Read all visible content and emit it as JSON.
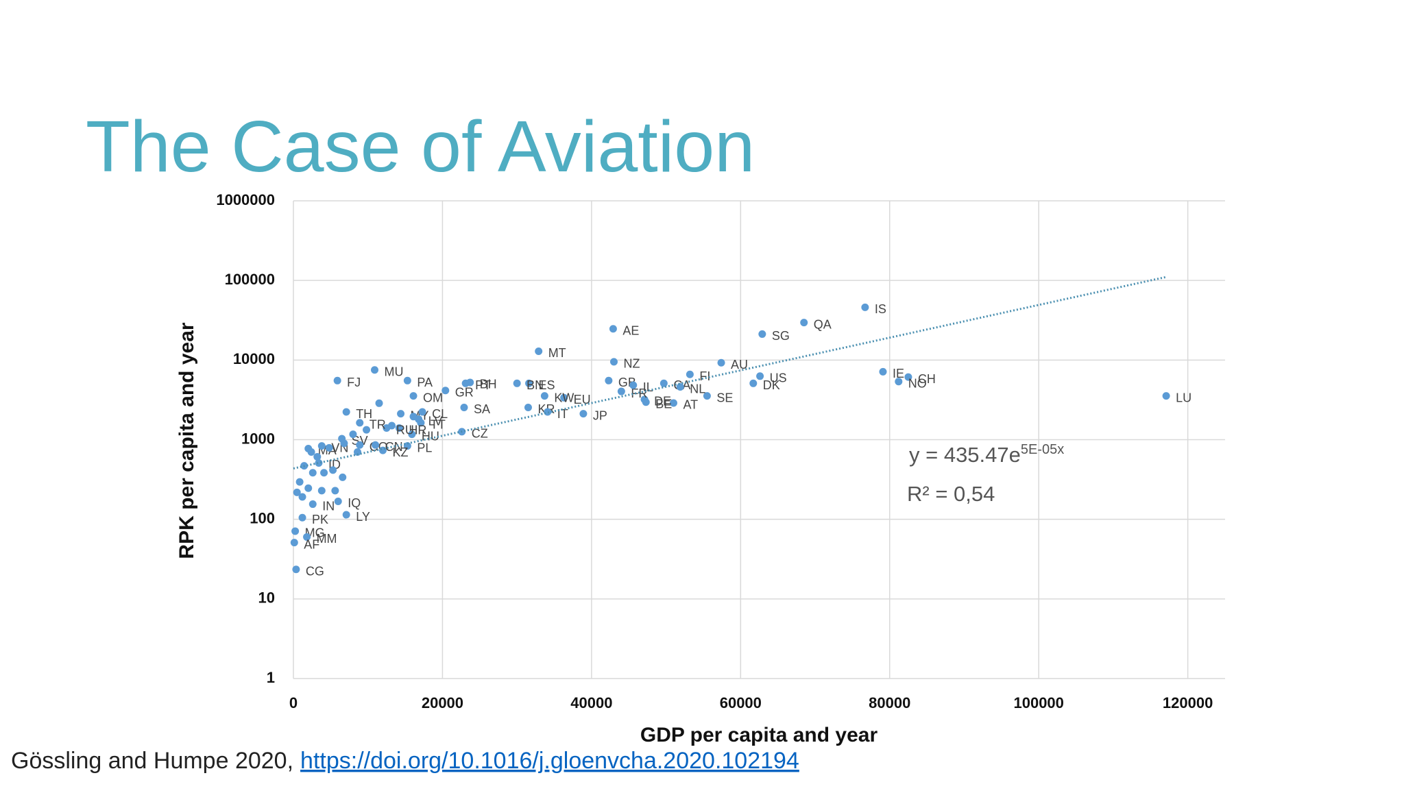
{
  "slide": {
    "title": "The Case of Aviation"
  },
  "chart_data": {
    "type": "scatter",
    "x_label": "GDP per capita and year",
    "y_label": "RPK per capita and year",
    "xlim": [
      0,
      125000
    ],
    "xticks": [
      0,
      20000,
      40000,
      60000,
      80000,
      100000,
      120000
    ],
    "ylim": [
      1,
      1000000
    ],
    "yticks": [
      1,
      10,
      100,
      1000,
      10000,
      100000,
      1000000
    ],
    "log_y": true,
    "grid": true,
    "series": [
      {
        "color": "#5b9bd5",
        "x": [
          76700,
          42900,
          62900,
          68500,
          32900,
          43000,
          57400,
          53200,
          49700,
          79100,
          82500,
          81200,
          62600,
          61700,
          117100,
          55500,
          51000,
          47300,
          47100,
          51900,
          42300,
          44000,
          45600,
          36300,
          38900,
          31500,
          34100,
          33700,
          31600,
          30000,
          23700,
          23100,
          20400,
          22900,
          22600,
          16100,
          10900,
          15300,
          5900,
          14400,
          7100,
          17300,
          16800,
          17100,
          14200,
          15900,
          15300,
          12500,
          8900,
          2000,
          6500,
          3800,
          8900,
          11000,
          12000,
          3400,
          6000,
          2600,
          7100,
          1200,
          240,
          1800,
          120,
          360,
          1440,
          840,
          2000,
          480,
          1200,
          2600,
          4100,
          5300,
          6600,
          5600,
          3800,
          6800,
          8000,
          9800,
          8600,
          3200,
          2400,
          4800,
          11500,
          16100,
          13200
        ],
        "values": [
          46000,
          24700,
          21200,
          29600,
          12900,
          9500,
          9250,
          6600,
          5100,
          7140,
          6120,
          5370,
          6280,
          5100,
          3550,
          3550,
          2890,
          2960,
          3200,
          4600,
          5520,
          4040,
          4830,
          3370,
          2120,
          2540,
          2230,
          3550,
          5100,
          5100,
          5240,
          5100,
          4150,
          2540,
          1260,
          3550,
          7520,
          5520,
          5520,
          2120,
          2230,
          2230,
          1810,
          1630,
          1400,
          1170,
          834,
          1400,
          1630,
          773,
          1030,
          834,
          857,
          857,
          733,
          510,
          168,
          155,
          114,
          105,
          71,
          60,
          51,
          23.5,
          470,
          295,
          246,
          218,
          191,
          384,
          384,
          415,
          337,
          229,
          229,
          900,
          1170,
          1330,
          700,
          610,
          700,
          790,
          2870,
          1950,
          1500
        ],
        "point_labels": [
          "IS",
          "AE",
          "SG",
          "QA",
          "MT",
          "NZ",
          "AU",
          "FI",
          "CA",
          "IE",
          "CH",
          "NO",
          "US",
          "DK",
          "LU",
          "SE",
          "AT",
          "BE",
          "DE",
          "NL",
          "GB",
          "FR",
          "IL",
          "EU",
          "JP",
          "KR",
          "IT",
          "KW",
          "ES",
          "BN",
          "BH",
          "PT",
          "GR",
          "SA",
          "CZ",
          "OM",
          "MU",
          "PA",
          "FJ",
          "MY",
          "TH",
          "CL",
          "LV",
          "TT",
          "HR",
          "HU",
          "PL",
          "RU",
          "TR",
          "MA",
          "SV",
          "VN",
          "CO",
          "CN",
          "KZ",
          "ID",
          "IQ",
          "IN",
          "LY",
          "PK",
          "MG",
          "MM",
          "AF",
          "CG",
          null,
          null,
          null,
          null,
          null,
          null,
          null,
          null,
          null,
          null,
          null,
          null,
          null,
          null,
          null,
          null,
          null,
          null,
          null,
          null,
          null
        ]
      },
      {
        "color": "#4a8fb0",
        "line": "dotted",
        "x": [
          0,
          117000
        ],
        "values": [
          435,
          110000
        ]
      }
    ],
    "annotations": {
      "equation": "y = 435.47e",
      "exponent": "5E-05x",
      "r_squared": "R² = 0,54"
    }
  },
  "footer": {
    "text": "Gössling and Humpe 2020,",
    "link": "https://doi.org/10.1016/j.gloenvcha.2020.102194"
  }
}
